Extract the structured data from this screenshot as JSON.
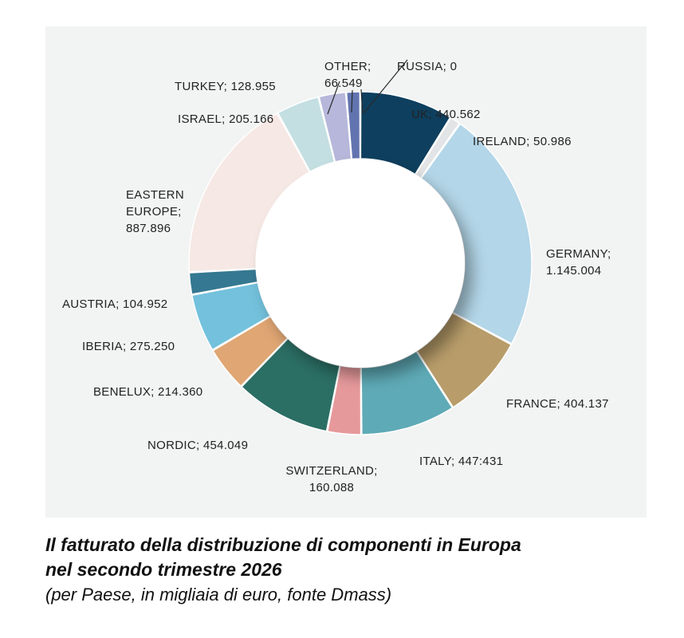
{
  "chart_data": {
    "type": "pie",
    "donut": true,
    "title": "",
    "unit": "migliaia di euro",
    "slices": [
      {
        "name": "UK",
        "value": 440562,
        "value_label": "440.562",
        "color": "#0e3f5e"
      },
      {
        "name": "IRELAND",
        "value": 50986,
        "value_label": "50.986",
        "color": "#e2e4e5"
      },
      {
        "name": "GERMANY",
        "value": 1145004,
        "value_label": "1.145.004",
        "color": "#b3d6e8"
      },
      {
        "name": "FRANCE",
        "value": 404137,
        "value_label": "404.137",
        "color": "#b89d6a"
      },
      {
        "name": "ITALY",
        "value": 447431,
        "value_label": "447:431",
        "color": "#5eaab6"
      },
      {
        "name": "SWITZERLAND",
        "value": 160088,
        "value_label": "160.088",
        "color": "#e6999b"
      },
      {
        "name": "NORDIC",
        "value": 454049,
        "value_label": "454.049",
        "color": "#2b6e64"
      },
      {
        "name": "BENELUX",
        "value": 214360,
        "value_label": "214.360",
        "color": "#e0a673"
      },
      {
        "name": "IBERIA",
        "value": 275250,
        "value_label": "275.250",
        "color": "#73c1dc"
      },
      {
        "name": "AUSTRIA",
        "value": 104952,
        "value_label": "104.952",
        "color": "#357891"
      },
      {
        "name": "EASTERN EUROPE",
        "value": 887896,
        "value_label": "887.896",
        "color": "#f6e8e4"
      },
      {
        "name": "ISRAEL",
        "value": 205166,
        "value_label": "205.166",
        "color": "#c4dfe1"
      },
      {
        "name": "TURKEY",
        "value": 128955,
        "value_label": "128.955",
        "color": "#b6b7da"
      },
      {
        "name": "OTHER",
        "value": 66549,
        "value_label": "66.549",
        "color": "#6274b0"
      },
      {
        "name": "RUSSIA",
        "value": 0,
        "value_label": "0",
        "color": "#3a3a3a"
      }
    ],
    "labels": [
      {
        "lines": [
          "RUSSIA; 0"
        ]
      },
      {
        "lines": [
          "OTHER;",
          "66.549"
        ]
      },
      {
        "lines": [
          "TURKEY; 128.955"
        ]
      },
      {
        "lines": [
          "UK; 440.562"
        ]
      },
      {
        "lines": [
          "IRELAND; 50.986"
        ]
      },
      {
        "lines": [
          "ISRAEL; 205.166"
        ]
      },
      {
        "lines": [
          "EASTERN",
          "EUROPE;",
          "887.896"
        ]
      },
      {
        "lines": [
          "GERMANY;",
          "1.145.004"
        ]
      },
      {
        "lines": [
          "AUSTRIA; 104.952"
        ]
      },
      {
        "lines": [
          "IBERIA; 275.250"
        ]
      },
      {
        "lines": [
          "BENELUX; 214.360"
        ]
      },
      {
        "lines": [
          "FRANCE; 404.137"
        ]
      },
      {
        "lines": [
          "NORDIC; 454.049"
        ]
      },
      {
        "lines": [
          "ITALY; 447:431"
        ]
      },
      {
        "lines": [
          "SWITZERLAND;",
          "160.088"
        ]
      }
    ]
  },
  "caption": {
    "title_line1": "Il fatturato della distribuzione di componenti in Europa",
    "title_line2": "nel secondo trimestre 2026",
    "subtitle": "(per Paese, in migliaia di euro, fonte Dmass)"
  }
}
